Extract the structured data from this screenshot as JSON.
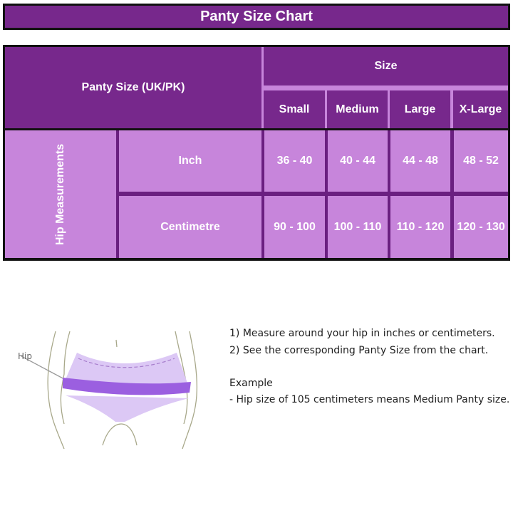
{
  "title": "Panty Size Chart",
  "table": {
    "corner_label": "Panty Size (UK/PK)",
    "size_group_label": "Size",
    "sizes": [
      "Small",
      "Medium",
      "Large",
      "X-Large"
    ],
    "row_group_label": "Hip Measurements",
    "rows": [
      {
        "unit": "Inch",
        "values": [
          "36 - 40",
          "40 - 44",
          "44 - 48",
          "48 - 52"
        ]
      },
      {
        "unit": "Centimetre",
        "values": [
          "90 - 100",
          "100 - 110",
          "110 - 120",
          "120 - 130"
        ]
      }
    ]
  },
  "illustration": {
    "label": "Hip"
  },
  "instructions": {
    "steps": [
      "1) Measure around your hip in inches or centimeters.",
      "2) See the corresponding Panty Size from the chart."
    ],
    "example_heading": "Example",
    "example_text": "- Hip size of 105 centimeters means Medium Panty size."
  },
  "colors": {
    "dark_purple": "#77288c",
    "light_purple": "#c785db",
    "band": "#9b5fe0"
  }
}
